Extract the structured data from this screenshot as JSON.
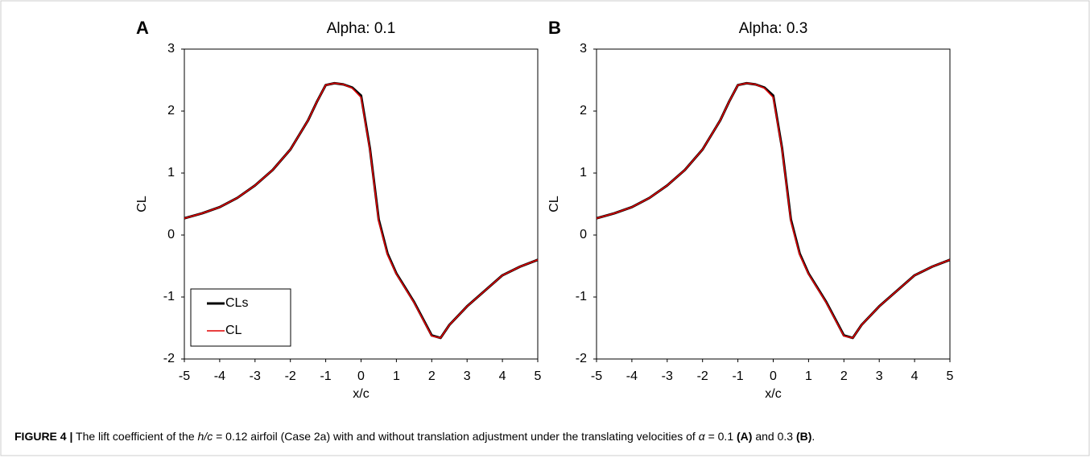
{
  "chart_data": [
    {
      "type": "line",
      "panel_label": "A",
      "title": "Alpha: 0.1",
      "x_label": "x/c",
      "y_label": "CL",
      "x": [
        -5,
        -4.5,
        -4,
        -3.5,
        -3,
        -2.5,
        -2,
        -1.5,
        -1.25,
        -1,
        -0.75,
        -0.5,
        -0.25,
        0,
        0.25,
        0.5,
        0.75,
        1,
        1.25,
        1.5,
        1.75,
        2,
        2.25,
        2.5,
        3,
        3.5,
        4,
        4.5,
        5
      ],
      "series": [
        {
          "name": "CLs",
          "color": "#000000",
          "values": [
            0.27,
            0.35,
            0.45,
            0.6,
            0.8,
            1.05,
            1.38,
            1.85,
            2.15,
            2.42,
            2.45,
            2.43,
            2.38,
            2.25,
            1.4,
            0.25,
            -0.3,
            -0.62,
            -0.85,
            -1.08,
            -1.35,
            -1.62,
            -1.66,
            -1.45,
            -1.15,
            -0.9,
            -0.65,
            -0.51,
            -0.4
          ]
        },
        {
          "name": "CL",
          "color": "#e00000",
          "values": [
            0.27,
            0.35,
            0.45,
            0.6,
            0.8,
            1.05,
            1.38,
            1.85,
            2.15,
            2.42,
            2.45,
            2.43,
            2.37,
            2.22,
            1.38,
            0.22,
            -0.32,
            -0.63,
            -0.86,
            -1.09,
            -1.36,
            -1.63,
            -1.66,
            -1.45,
            -1.15,
            -0.9,
            -0.65,
            -0.51,
            -0.4
          ]
        }
      ],
      "xlim": [
        -5,
        5
      ],
      "ylim": [
        -2,
        3
      ],
      "xticks": [
        -5,
        -4,
        -3,
        -2,
        -1,
        0,
        1,
        2,
        3,
        4,
        5
      ],
      "yticks": [
        -2,
        -1,
        0,
        1,
        2,
        3
      ],
      "legend": "lower left"
    },
    {
      "type": "line",
      "panel_label": "B",
      "title": "Alpha: 0.3",
      "x_label": "x/c",
      "y_label": "CL",
      "x": [
        -5,
        -4.5,
        -4,
        -3.5,
        -3,
        -2.5,
        -2,
        -1.5,
        -1.25,
        -1,
        -0.75,
        -0.5,
        -0.25,
        0,
        0.25,
        0.5,
        0.75,
        1,
        1.25,
        1.5,
        1.75,
        2,
        2.25,
        2.5,
        3,
        3.5,
        4,
        4.5,
        5
      ],
      "series": [
        {
          "name": "CLs",
          "color": "#000000",
          "values": [
            0.27,
            0.35,
            0.45,
            0.6,
            0.8,
            1.05,
            1.38,
            1.85,
            2.15,
            2.42,
            2.45,
            2.43,
            2.38,
            2.25,
            1.4,
            0.25,
            -0.3,
            -0.62,
            -0.85,
            -1.08,
            -1.35,
            -1.62,
            -1.66,
            -1.45,
            -1.15,
            -0.9,
            -0.65,
            -0.51,
            -0.4
          ]
        },
        {
          "name": "CL",
          "color": "#e00000",
          "values": [
            0.27,
            0.35,
            0.45,
            0.6,
            0.8,
            1.05,
            1.38,
            1.85,
            2.15,
            2.42,
            2.45,
            2.43,
            2.37,
            2.22,
            1.38,
            0.22,
            -0.32,
            -0.63,
            -0.86,
            -1.09,
            -1.36,
            -1.63,
            -1.66,
            -1.45,
            -1.15,
            -0.9,
            -0.65,
            -0.51,
            -0.4
          ]
        }
      ],
      "xlim": [
        -5,
        5
      ],
      "ylim": [
        -2,
        3
      ],
      "xticks": [
        -5,
        -4,
        -3,
        -2,
        -1,
        0,
        1,
        2,
        3,
        4,
        5
      ],
      "yticks": [
        -2,
        -1,
        0,
        1,
        2,
        3
      ]
    }
  ],
  "caption": [
    {
      "text": "FIGURE 4 |",
      "style": "bold"
    },
    {
      "text": " The lift coefficient of the ",
      "style": "normal"
    },
    {
      "text": "h/c",
      "style": "italic"
    },
    {
      "text": " = 0.12 airfoil (Case 2a) with and without translation adjustment under the translating velocities of ",
      "style": "normal"
    },
    {
      "text": "α",
      "style": "italic"
    },
    {
      "text": " = 0.1 ",
      "style": "normal"
    },
    {
      "text": "(A)",
      "style": "bold"
    },
    {
      "text": " and 0.3 ",
      "style": "normal"
    },
    {
      "text": "(B)",
      "style": "bold"
    },
    {
      "text": ".",
      "style": "normal"
    }
  ]
}
